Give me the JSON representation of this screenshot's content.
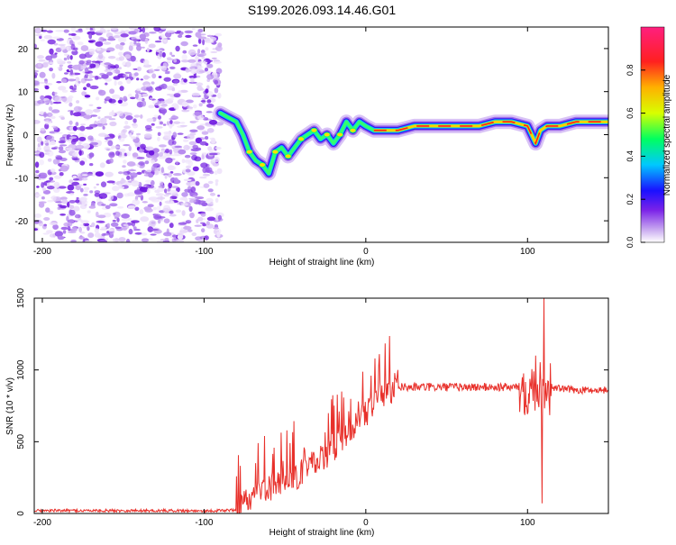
{
  "title": "S199.2026.093.14.46.G01",
  "chart_data": [
    {
      "type": "heatmap",
      "title": "S199.2026.093.14.46.G01",
      "xlabel": "Height of straight line (km)",
      "ylabel": "Frequency (Hz)",
      "xlim": [
        -205,
        150
      ],
      "ylim": [
        -25,
        25
      ],
      "x_ticks": [
        -200,
        -100,
        0,
        100
      ],
      "y_ticks": [
        -20,
        -10,
        0,
        10,
        20
      ],
      "colorbar": {
        "label": "Normalized spectral amplitude",
        "range": [
          0,
          1
        ],
        "ticks": [
          "0.0",
          "0.2",
          "0.4",
          "0.6",
          "0.8"
        ],
        "colors": [
          "#ffffff",
          "#b98ef0",
          "#7a22e8",
          "#1a10ff",
          "#00c8ff",
          "#00ff60",
          "#d8ff00",
          "#ffb000",
          "#ff2020",
          "#ff1f7f"
        ]
      },
      "noise_region_x": [
        -205,
        -90
      ],
      "ridge": {
        "x": [
          -90,
          -85,
          -80,
          -76,
          -72,
          -68,
          -64,
          -60,
          -56,
          -52,
          -48,
          -44,
          -40,
          -36,
          -32,
          -28,
          -24,
          -20,
          -16,
          -12,
          -8,
          -4,
          0,
          5,
          10,
          20,
          30,
          40,
          50,
          60,
          70,
          80,
          90,
          100,
          105,
          108,
          112,
          120,
          130,
          150
        ],
        "freq": [
          5,
          4,
          3,
          0,
          -4,
          -6,
          -7,
          -9,
          -4,
          -3,
          -5,
          -3,
          -1,
          0,
          1,
          -1,
          0,
          -2,
          0,
          3,
          1,
          3,
          2,
          1,
          1,
          1,
          2,
          2,
          2,
          2,
          2,
          3,
          3,
          2,
          -2,
          1,
          2,
          2,
          3,
          3
        ]
      }
    },
    {
      "type": "line",
      "xlabel": "Height of straight line (km)",
      "ylabel": "SNR (10 * v/v)",
      "xlim": [
        -205,
        150
      ],
      "ylim": [
        0,
        1500
      ],
      "x_ticks": [
        -200,
        -100,
        0,
        100
      ],
      "y_ticks": [
        0,
        500,
        1000,
        1500
      ],
      "series": [
        {
          "name": "SNR",
          "color": "#e8302a",
          "x": [
            -205,
            -180,
            -150,
            -120,
            -100,
            -90,
            -80,
            -75,
            -70,
            -65,
            -60,
            -55,
            -50,
            -45,
            -40,
            -35,
            -30,
            -25,
            -20,
            -15,
            -10,
            -5,
            0,
            5,
            10,
            15,
            20,
            30,
            40,
            50,
            60,
            70,
            80,
            90,
            100,
            105,
            108,
            110,
            112,
            120,
            130,
            140,
            150
          ],
          "values": [
            20,
            20,
            20,
            20,
            18,
            20,
            25,
            60,
            100,
            150,
            180,
            200,
            220,
            260,
            280,
            320,
            360,
            400,
            460,
            520,
            580,
            650,
            700,
            760,
            820,
            860,
            880,
            880,
            880,
            880,
            880,
            880,
            880,
            880,
            880,
            900,
            880,
            860,
            880,
            870,
            860,
            860,
            860
          ]
        }
      ],
      "spikes": [
        {
          "x": 110,
          "value": 1500
        },
        {
          "x": 109,
          "value": 70
        },
        {
          "x": 105,
          "value": 1100
        },
        {
          "x": 20,
          "value": 1000
        },
        {
          "x": -15,
          "value": 850
        }
      ]
    }
  ]
}
